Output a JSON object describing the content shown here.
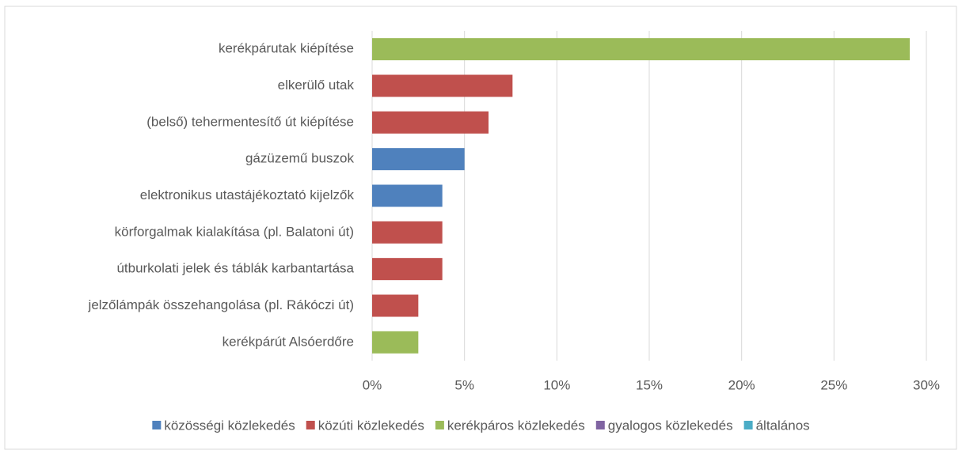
{
  "chart_data": {
    "type": "bar",
    "orientation": "horizontal",
    "categories": [
      "kerékpárutak kiépítése",
      "elkerülő utak",
      "(belső) tehermentesítő út kiépítése",
      "gázüzemű buszok",
      "elektronikus utastájékoztató kijelzők",
      "körforgalmak kialakítása (pl. Balatoni út)",
      "útburkolati jelek és táblák karbantartása",
      "jelzőlámpák összehangolása (pl. Rákóczi út)",
      "kerékpárút Alsóerdőre"
    ],
    "series": [
      {
        "name": "közösségi közlekedés",
        "color": "#4f81bd",
        "values": [
          null,
          null,
          null,
          5.0,
          3.8,
          null,
          null,
          null,
          null
        ]
      },
      {
        "name": "közúti közlekedés",
        "color": "#c0504d",
        "values": [
          null,
          7.6,
          6.3,
          null,
          null,
          3.8,
          3.8,
          2.5,
          null
        ]
      },
      {
        "name": "kerékpáros közlekedés",
        "color": "#9bbb59",
        "values": [
          29.1,
          null,
          null,
          null,
          null,
          null,
          null,
          null,
          2.5
        ]
      },
      {
        "name": "gyalogos közlekedés",
        "color": "#8064a2",
        "values": [
          null,
          null,
          null,
          null,
          null,
          null,
          null,
          null,
          null
        ]
      },
      {
        "name": "általános",
        "color": "#4bacc6",
        "values": [
          null,
          null,
          null,
          null,
          null,
          null,
          null,
          null,
          null
        ]
      }
    ],
    "xlim": [
      0,
      30
    ],
    "xticks": [
      {
        "value": 0,
        "label": "0%"
      },
      {
        "value": 5,
        "label": "5%"
      },
      {
        "value": 10,
        "label": "10%"
      },
      {
        "value": 15,
        "label": "15%"
      },
      {
        "value": 20,
        "label": "20%"
      },
      {
        "value": 25,
        "label": "25%"
      },
      {
        "value": 30,
        "label": "30%"
      }
    ],
    "grid": true,
    "legend": "bottom"
  }
}
